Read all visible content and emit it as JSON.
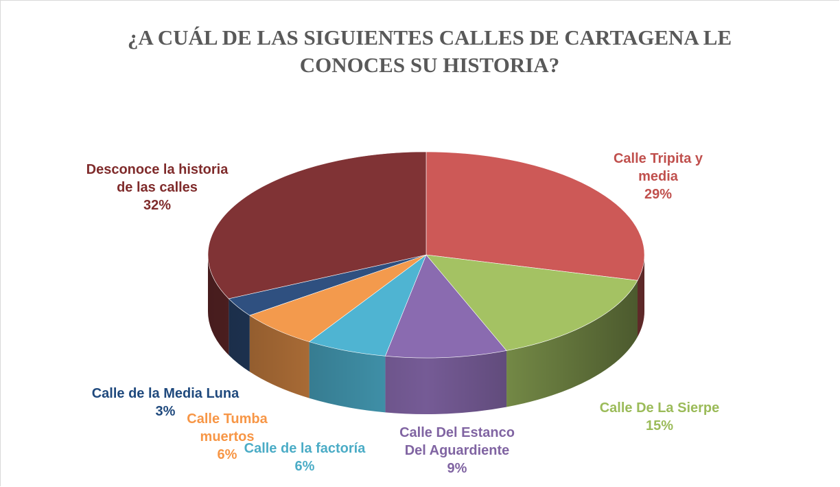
{
  "chart_data": {
    "type": "pie",
    "title": "¿A CUÁL DE LAS SIGUIENTES CALLES DE CARTAGENA LE CONOCES SU HISTORIA?",
    "categories": [
      "Calle Tripita y media",
      "Calle De La Sierpe",
      "Calle Del Estanco Del Aguardiente",
      "Calle de la factoría",
      "Calle Tumba muertos",
      "Calle de la Media Luna",
      "Desconoce la historia de las calles"
    ],
    "values": [
      29,
      15,
      9,
      6,
      6,
      3,
      32
    ],
    "value_labels": [
      "29%",
      "15%",
      "9%",
      "6%",
      "6%",
      "3%",
      "32%"
    ],
    "colors": [
      "#cd5957",
      "#a4c263",
      "#8a6bb0",
      "#4fb4d2",
      "#f39a4d",
      "#2f5080",
      "#803335"
    ],
    "label_colors": [
      "#c0504d",
      "#9bbb59",
      "#8064a2",
      "#4bacc6",
      "#f79646",
      "#1f497d",
      "#7f2b2b"
    ]
  }
}
